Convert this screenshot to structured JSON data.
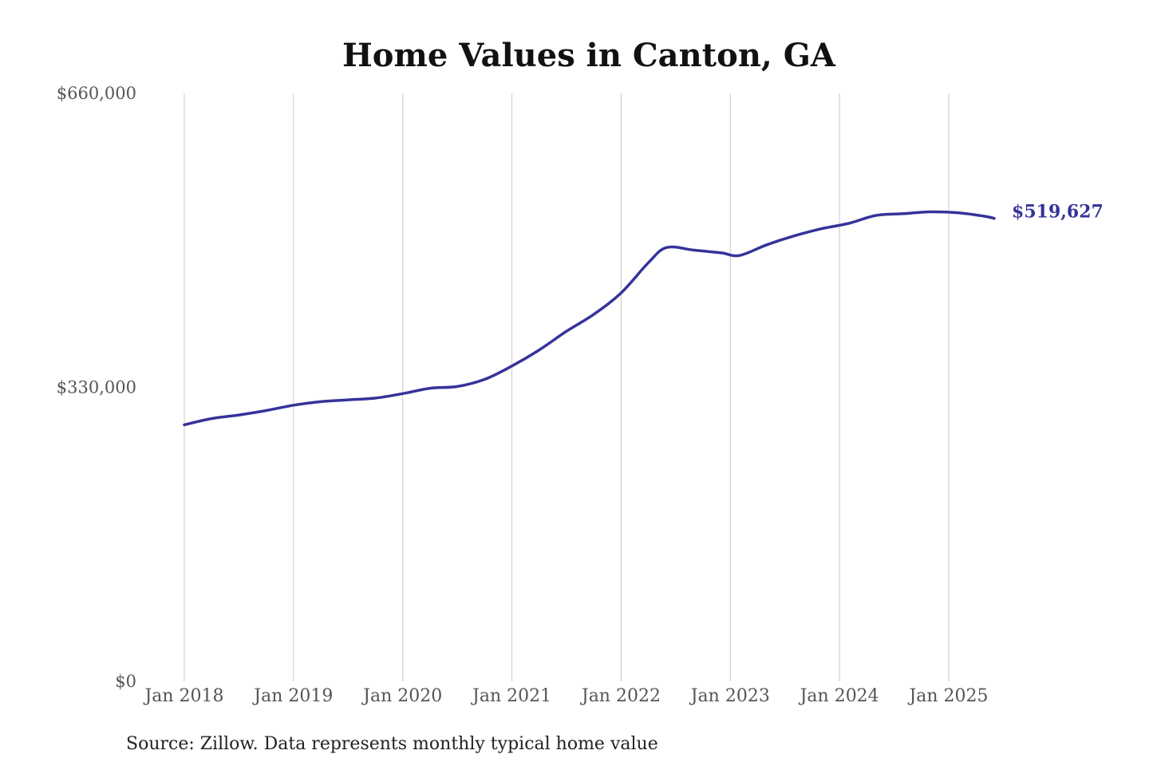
{
  "chart_data": {
    "type": "line",
    "title": "Home Values in Canton, GA",
    "source": "Source: Zillow. Data represents monthly typical home value",
    "xlabel": "",
    "ylabel": "",
    "ylim": [
      0,
      660000
    ],
    "y_ticks": [
      {
        "value": 0,
        "label": "$0"
      },
      {
        "value": 330000,
        "label": "$330,000"
      },
      {
        "value": 660000,
        "label": "$660,000"
      }
    ],
    "x_ticks": [
      {
        "date": "2018-01",
        "label": "Jan 2018"
      },
      {
        "date": "2019-01",
        "label": "Jan 2019"
      },
      {
        "date": "2020-01",
        "label": "Jan 2020"
      },
      {
        "date": "2021-01",
        "label": "Jan 2021"
      },
      {
        "date": "2022-01",
        "label": "Jan 2022"
      },
      {
        "date": "2023-01",
        "label": "Jan 2023"
      },
      {
        "date": "2024-01",
        "label": "Jan 2024"
      },
      {
        "date": "2025-01",
        "label": "Jan 2025"
      }
    ],
    "grid": "vertical",
    "line_color": "#35339a",
    "end_label": "$519,627",
    "series": [
      {
        "points": [
          {
            "date": "2018-01",
            "value": 288000
          },
          {
            "date": "2018-04",
            "value": 295000
          },
          {
            "date": "2018-07",
            "value": 299000
          },
          {
            "date": "2018-10",
            "value": 304000
          },
          {
            "date": "2019-01",
            "value": 310000
          },
          {
            "date": "2019-04",
            "value": 314000
          },
          {
            "date": "2019-07",
            "value": 316000
          },
          {
            "date": "2019-10",
            "value": 318000
          },
          {
            "date": "2020-01",
            "value": 323000
          },
          {
            "date": "2020-04",
            "value": 329000
          },
          {
            "date": "2020-07",
            "value": 331000
          },
          {
            "date": "2020-10",
            "value": 339000
          },
          {
            "date": "2021-01",
            "value": 354000
          },
          {
            "date": "2021-04",
            "value": 372000
          },
          {
            "date": "2021-07",
            "value": 393000
          },
          {
            "date": "2021-10",
            "value": 412000
          },
          {
            "date": "2022-01",
            "value": 436000
          },
          {
            "date": "2022-04",
            "value": 470000
          },
          {
            "date": "2022-06",
            "value": 487000
          },
          {
            "date": "2022-09",
            "value": 484000
          },
          {
            "date": "2022-12",
            "value": 481000
          },
          {
            "date": "2023-02",
            "value": 478000
          },
          {
            "date": "2023-05",
            "value": 490000
          },
          {
            "date": "2023-08",
            "value": 500000
          },
          {
            "date": "2023-11",
            "value": 508000
          },
          {
            "date": "2024-02",
            "value": 514000
          },
          {
            "date": "2024-05",
            "value": 523000
          },
          {
            "date": "2024-08",
            "value": 525000
          },
          {
            "date": "2024-11",
            "value": 527000
          },
          {
            "date": "2025-02",
            "value": 526000
          },
          {
            "date": "2025-05",
            "value": 522000
          },
          {
            "date": "2025-06",
            "value": 519627
          }
        ]
      }
    ]
  }
}
